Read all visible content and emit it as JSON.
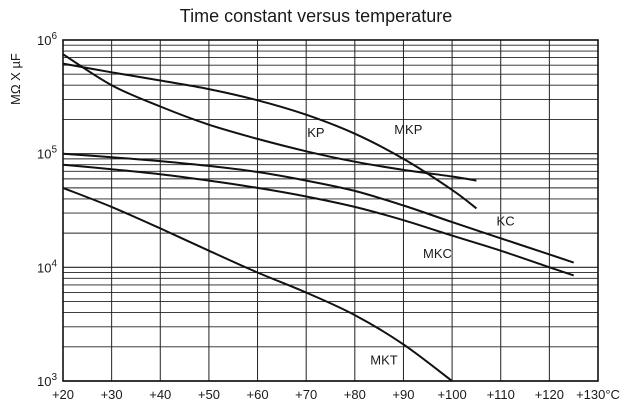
{
  "chart_data": {
    "type": "line",
    "title": "Time constant versus temperature",
    "xlabel": "",
    "ylabel": "MΩ X µF",
    "y_scale": "log",
    "grid": true,
    "legend": "inline labels",
    "xlim": [
      20,
      130
    ],
    "ylim": [
      1000,
      1000000
    ],
    "x_ticks": [
      "+20",
      "+30",
      "+40",
      "+50",
      "+60",
      "+70",
      "+80",
      "+90",
      "+100",
      "+110",
      "+120",
      "+130°C"
    ],
    "y_ticks": [
      {
        "value": 1000,
        "base": "10",
        "exp": "3"
      },
      {
        "value": 10000,
        "base": "10",
        "exp": "4"
      },
      {
        "value": 100000,
        "base": "10",
        "exp": "5"
      },
      {
        "value": 1000000,
        "base": "10",
        "exp": "6"
      }
    ],
    "series": [
      {
        "name": "KP",
        "x": [
          20,
          30,
          40,
          50,
          60,
          70,
          80,
          90,
          100,
          105
        ],
        "y": [
          750000,
          400000,
          260000,
          180000,
          135000,
          105000,
          85000,
          72000,
          63000,
          58000
        ],
        "label_at": [
          72,
          150000
        ]
      },
      {
        "name": "MKP",
        "x": [
          20,
          30,
          40,
          50,
          60,
          70,
          80,
          90,
          100,
          105
        ],
        "y": [
          620000,
          520000,
          440000,
          370000,
          295000,
          220000,
          150000,
          90000,
          48000,
          33000
        ],
        "label_at": [
          91,
          160000
        ]
      },
      {
        "name": "KC",
        "x": [
          20,
          30,
          40,
          50,
          60,
          70,
          80,
          90,
          100,
          110,
          120,
          125
        ],
        "y": [
          100000,
          93000,
          86000,
          78000,
          69000,
          58000,
          47000,
          35000,
          25000,
          18000,
          13000,
          11000
        ],
        "label_at": [
          111,
          25000
        ]
      },
      {
        "name": "MKC",
        "x": [
          20,
          30,
          40,
          50,
          60,
          70,
          80,
          90,
          100,
          110,
          120,
          125
        ],
        "y": [
          80000,
          73000,
          66000,
          58000,
          50000,
          42000,
          34000,
          26000,
          19000,
          14000,
          10000,
          8500
        ],
        "label_at": [
          97,
          13000
        ]
      },
      {
        "name": "MKT",
        "x": [
          20,
          30,
          40,
          50,
          60,
          70,
          80,
          90,
          100
        ],
        "y": [
          50000,
          34000,
          22000,
          14000,
          9000,
          6000,
          3800,
          2100,
          1000
        ],
        "label_at": [
          86,
          1500
        ]
      }
    ]
  }
}
